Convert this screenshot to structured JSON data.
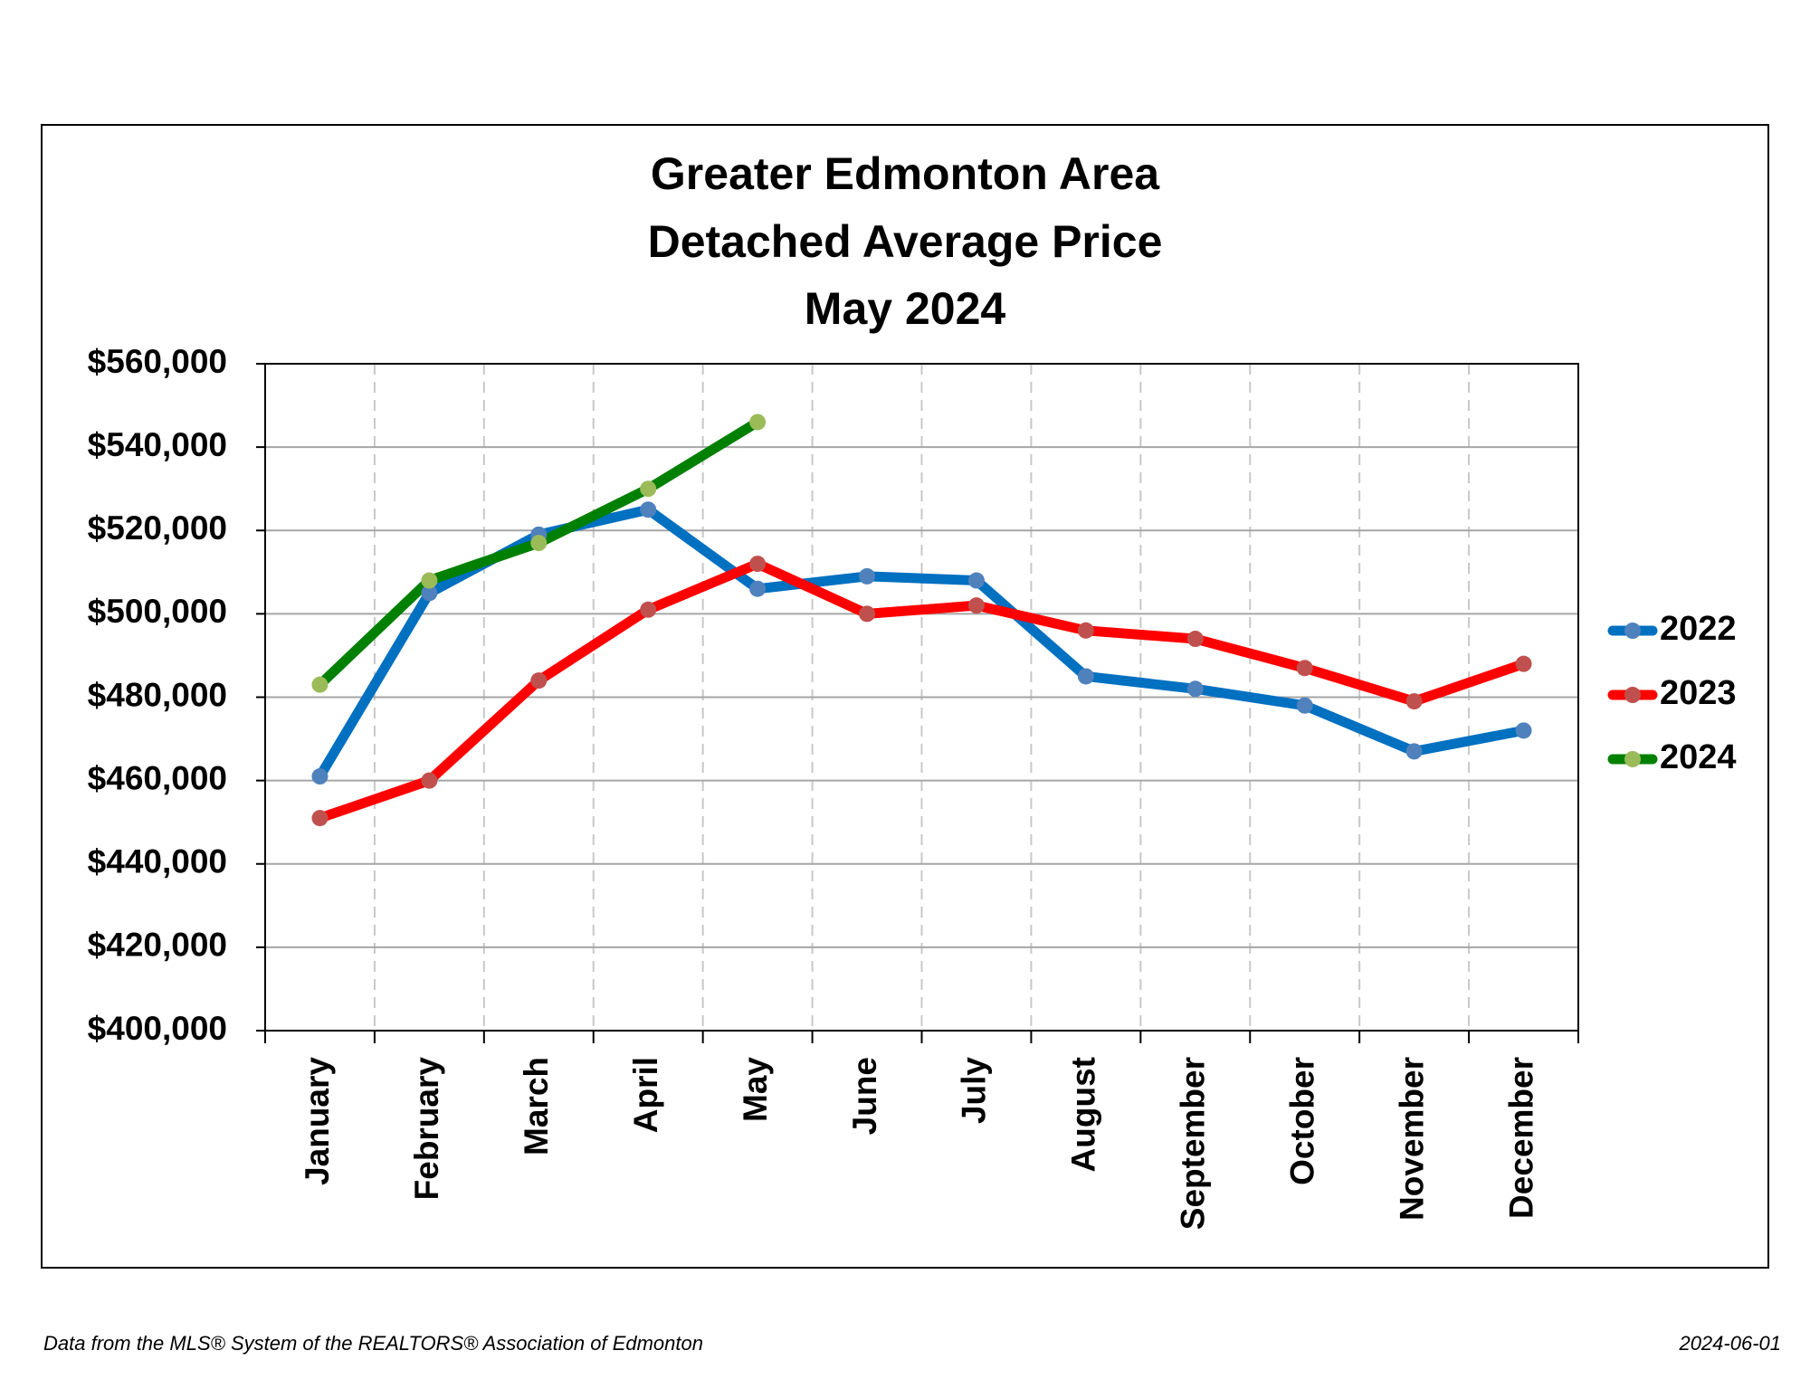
{
  "chart_data": {
    "type": "line",
    "title": [
      "Greater Edmonton Area",
      "Detached Average Price",
      "May 2024"
    ],
    "categories": [
      "January",
      "February",
      "March",
      "April",
      "May",
      "June",
      "July",
      "August",
      "September",
      "October",
      "November",
      "December"
    ],
    "series": [
      {
        "name": "2022",
        "color": "#0070c0",
        "marker_color": "#4f81bd",
        "values": [
          461000,
          505000,
          519000,
          525000,
          506000,
          509000,
          508000,
          485000,
          482000,
          478000,
          467000,
          472000
        ]
      },
      {
        "name": "2023",
        "color": "#ff0000",
        "marker_color": "#c0504d",
        "values": [
          451000,
          460000,
          484000,
          501000,
          512000,
          500000,
          502000,
          496000,
          494000,
          487000,
          479000,
          488000
        ]
      },
      {
        "name": "2024",
        "color": "#008000",
        "marker_color": "#9bbb59",
        "values": [
          483000,
          508000,
          517000,
          530000,
          546000,
          null,
          null,
          null,
          null,
          null,
          null,
          null
        ]
      }
    ],
    "ylim": [
      400000,
      560000
    ],
    "yticks": [
      {
        "value": 400000,
        "label": "$400,000"
      },
      {
        "value": 420000,
        "label": "$420,000"
      },
      {
        "value": 440000,
        "label": "$440,000"
      },
      {
        "value": 460000,
        "label": "$460,000"
      },
      {
        "value": 480000,
        "label": "$480,000"
      },
      {
        "value": 500000,
        "label": "$500,000"
      },
      {
        "value": 520000,
        "label": "$520,000"
      },
      {
        "value": 540000,
        "label": "$540,000"
      },
      {
        "value": 560000,
        "label": "$560,000"
      }
    ],
    "grid": true,
    "legend": "right"
  },
  "footer": {
    "source": "Data from the MLS® System of the REALTORS® Association of Edmonton",
    "date": "2024-06-01"
  }
}
